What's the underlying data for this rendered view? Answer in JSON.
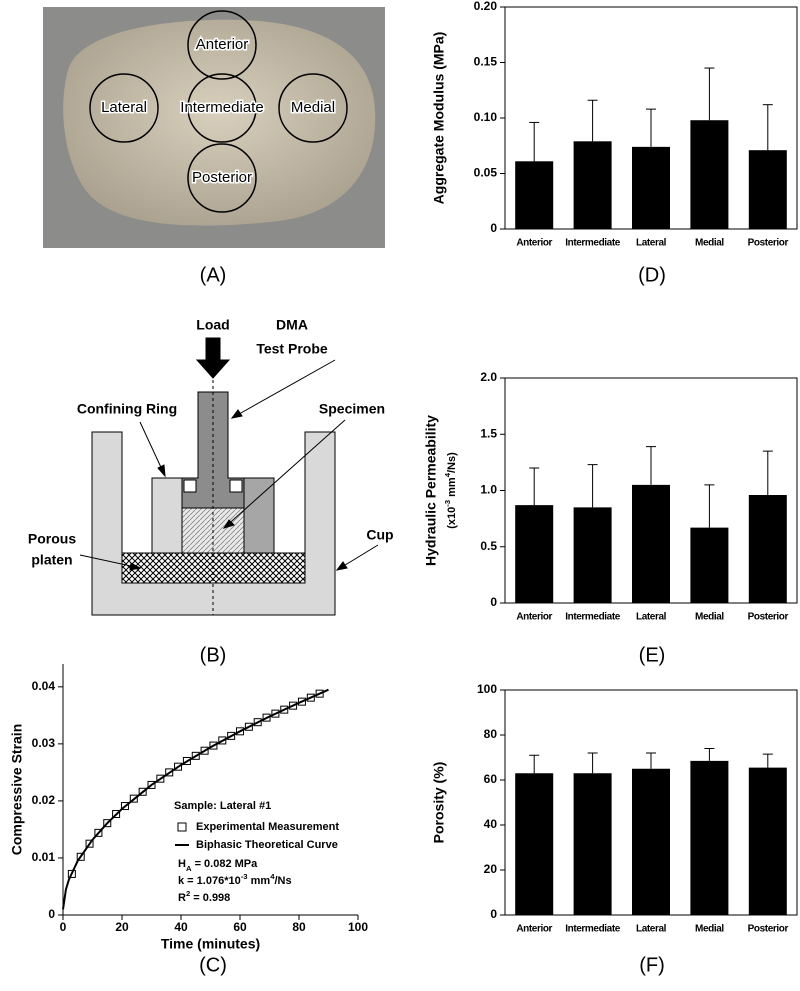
{
  "panel_labels": [
    "(A)",
    "(B)",
    "(C)",
    "(D)",
    "(E)",
    "(F)"
  ],
  "photo": {
    "labels": [
      "Anterior",
      "Lateral",
      "Intermediate",
      "Medial",
      "Posterior"
    ]
  },
  "diagram": {
    "labels": [
      "Load",
      "DMA",
      "Test Probe",
      "Confining Ring",
      "Specimen",
      "Porous",
      "platen",
      "Cup"
    ]
  },
  "chart_data": [
    {
      "type": "combo",
      "xlabel": "Time (minutes)",
      "ylabel": "Compressive Strain",
      "xlim": [
        0,
        100
      ],
      "xticks": [
        0,
        20,
        40,
        60,
        80,
        100
      ],
      "ylim": [
        0,
        0.044
      ],
      "yticks": [
        0,
        0.01,
        0.02,
        0.03,
        0.04
      ],
      "legend_title": "Sample: Lateral #1",
      "series": [
        {
          "name": "Experimental Measurement",
          "marker": "square",
          "color": "#000000",
          "x": [
            3,
            6,
            9,
            12,
            15,
            18,
            21,
            24,
            27,
            30,
            33,
            36,
            39,
            42,
            45,
            48,
            51,
            54,
            57,
            60,
            63,
            66,
            69,
            72,
            75,
            78,
            81,
            84,
            87
          ],
          "values": [
            0.0072,
            0.0102,
            0.0125,
            0.0144,
            0.0161,
            0.0177,
            0.0191,
            0.0204,
            0.0216,
            0.0228,
            0.0239,
            0.025,
            0.026,
            0.027,
            0.0279,
            0.0288,
            0.0297,
            0.0306,
            0.0314,
            0.0322,
            0.033,
            0.0338,
            0.0346,
            0.0353,
            0.036,
            0.0367,
            0.0374,
            0.0381,
            0.0388
          ]
        },
        {
          "name": "Biphasic Theoretical Curve",
          "marker": "line",
          "color": "#000000",
          "x": [
            0,
            1,
            2,
            5,
            10,
            15,
            20,
            30,
            40,
            50,
            60,
            70,
            80,
            90
          ],
          "values": [
            0.001,
            0.0045,
            0.0062,
            0.0095,
            0.0132,
            0.0161,
            0.0186,
            0.0228,
            0.0263,
            0.0294,
            0.0322,
            0.0348,
            0.0372,
            0.0395
          ]
        }
      ],
      "annotations": [
        [
          {
            "t": "H"
          },
          {
            "t": "A",
            "sub": true
          },
          {
            "t": " = 0.082 MPa"
          }
        ],
        [
          {
            "t": "k"
          },
          {
            "t": " = 1.076*10"
          },
          {
            "t": "-3",
            "sup": true
          },
          {
            "t": " mm"
          },
          {
            "t": "4",
            "sup": true
          },
          {
            "t": "/Ns"
          }
        ],
        [
          {
            "t": "R"
          },
          {
            "t": "2",
            "sup": true
          },
          {
            "t": " = 0.998"
          }
        ]
      ]
    },
    {
      "type": "bar",
      "ylabel": "Aggregate Modulus (MPa)",
      "color": "#000000",
      "categories": [
        "Anterior",
        "Intermediate",
        "Lateral",
        "Medial",
        "Posterior"
      ],
      "values": [
        0.061,
        0.079,
        0.074,
        0.098,
        0.071
      ],
      "errors": [
        0.035,
        0.037,
        0.034,
        0.047,
        0.041
      ],
      "ylim": [
        0,
        0.2
      ],
      "yticks": [
        0,
        0.05,
        {
          "value": 0.1,
          "label": "0.10"
        },
        0.15,
        {
          "value": 0.2,
          "label": "0.20"
        }
      ]
    },
    {
      "type": "bar",
      "ylabel": "Hydraulic Permeability",
      "ylabel_unit": [
        {
          "t": "(x10"
        },
        {
          "t": "-3",
          "sup": true
        },
        {
          "t": " mm"
        },
        {
          "t": "4",
          "sup": true
        },
        {
          "t": "/Ns)"
        }
      ],
      "color": "#000000",
      "categories": [
        "Anterior",
        "Intermediate",
        "Lateral",
        "Medial",
        "Posterior"
      ],
      "values": [
        0.87,
        0.85,
        1.05,
        0.67,
        0.96
      ],
      "errors": [
        0.33,
        0.38,
        0.34,
        0.38,
        0.39
      ],
      "ylim": [
        0,
        2
      ],
      "yticks": [
        0,
        0.5,
        {
          "value": 1,
          "label": "1.0"
        },
        1.5,
        {
          "value": 2,
          "label": "2.0"
        }
      ]
    },
    {
      "type": "bar",
      "ylabel": "Porosity (%)",
      "color": "#000000",
      "categories": [
        "Anterior",
        "Intermediate",
        "Lateral",
        "Medial",
        "Posterior"
      ],
      "values": [
        63,
        63,
        65,
        68.5,
        65.5
      ],
      "errors": [
        8,
        9,
        7,
        5.5,
        6
      ],
      "ylim": [
        0,
        100
      ],
      "yticks": [
        0,
        20,
        40,
        60,
        80,
        100
      ]
    }
  ]
}
